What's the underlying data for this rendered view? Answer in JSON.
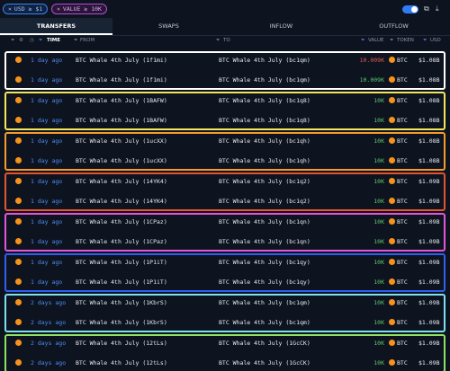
{
  "filters": {
    "chip1": "USD ≥ $1",
    "chip2": "VALUE ≥ 10K"
  },
  "tabs": [
    "TRANSFERS",
    "SWAPS",
    "INFLOW",
    "OUTFLOW"
  ],
  "columns": {
    "time": "TIME",
    "from": "FROM",
    "to": "TO",
    "value": "VALUE",
    "token": "TOKEN",
    "usd": "USD"
  },
  "group_colors": [
    "#ffffff",
    "#f3e65a",
    "#f59a2c",
    "#e4542f",
    "#e455d9",
    "#2f5ff0",
    "#7fe0f0",
    "#8fe060"
  ],
  "rows": [
    {
      "time": "1 day ago",
      "from": "BTC Whale 4th July  (1f1mi)",
      "to": "BTC Whale 4th July  (bc1qm)",
      "value": "10.009K",
      "red": true,
      "token": "BTC",
      "usd": "$1.08B"
    },
    {
      "time": "1 day ago",
      "from": "BTC Whale 4th July  (1f1mi)",
      "to": "BTC Whale 4th July  (bc1qm)",
      "value": "10.009K",
      "red": false,
      "token": "BTC",
      "usd": "$1.08B"
    },
    {
      "time": "1 day ago",
      "from": "BTC Whale 4th July  (1BAFW)",
      "to": "BTC Whale 4th July  (bc1q8)",
      "value": "10K",
      "red": false,
      "token": "BTC",
      "usd": "$1.08B"
    },
    {
      "time": "1 day ago",
      "from": "BTC Whale 4th July  (1BAFW)",
      "to": "BTC Whale 4th July  (bc1q8)",
      "value": "10K",
      "red": false,
      "token": "BTC",
      "usd": "$1.08B"
    },
    {
      "time": "1 day ago",
      "from": "BTC Whale 4th July  (1ucXX)",
      "to": "BTC Whale 4th July  (bc1qh)",
      "value": "10K",
      "red": false,
      "token": "BTC",
      "usd": "$1.08B"
    },
    {
      "time": "1 day ago",
      "from": "BTC Whale 4th July  (1ucXX)",
      "to": "BTC Whale 4th July  (bc1qh)",
      "value": "10K",
      "red": false,
      "token": "BTC",
      "usd": "$1.08B"
    },
    {
      "time": "1 day ago",
      "from": "BTC Whale 4th July  (14YK4)",
      "to": "BTC Whale 4th July  (bc1q2)",
      "value": "10K",
      "red": false,
      "token": "BTC",
      "usd": "$1.09B"
    },
    {
      "time": "1 day ago",
      "from": "BTC Whale 4th July  (14YK4)",
      "to": "BTC Whale 4th July  (bc1q2)",
      "value": "10K",
      "red": false,
      "token": "BTC",
      "usd": "$1.09B"
    },
    {
      "time": "1 day ago",
      "from": "BTC Whale 4th July  (1CPaz)",
      "to": "BTC Whale 4th July  (bc1qn)",
      "value": "10K",
      "red": false,
      "token": "BTC",
      "usd": "$1.09B"
    },
    {
      "time": "1 day ago",
      "from": "BTC Whale 4th July  (1CPaz)",
      "to": "BTC Whale 4th July  (bc1qn)",
      "value": "10K",
      "red": false,
      "token": "BTC",
      "usd": "$1.09B"
    },
    {
      "time": "1 day ago",
      "from": "BTC Whale 4th July  (1P1iT)",
      "to": "BTC Whale 4th July  (bc1qy)",
      "value": "10K",
      "red": false,
      "token": "BTC",
      "usd": "$1.09B"
    },
    {
      "time": "1 day ago",
      "from": "BTC Whale 4th July  (1P1iT)",
      "to": "BTC Whale 4th July  (bc1qy)",
      "value": "10K",
      "red": false,
      "token": "BTC",
      "usd": "$1.09B"
    },
    {
      "time": "2 days ago",
      "from": "BTC Whale 4th July  (1KbrS)",
      "to": "BTC Whale 4th July  (bc1qm)",
      "value": "10K",
      "red": false,
      "token": "BTC",
      "usd": "$1.09B"
    },
    {
      "time": "2 days ago",
      "from": "BTC Whale 4th July  (1KbrS)",
      "to": "BTC Whale 4th July  (bc1qm)",
      "value": "10K",
      "red": false,
      "token": "BTC",
      "usd": "$1.09B"
    },
    {
      "time": "2 days ago",
      "from": "BTC Whale 4th July  (12tLs)",
      "to": "BTC Whale 4th July  (1GcCK)",
      "value": "10K",
      "red": false,
      "token": "BTC",
      "usd": "$1.09B"
    },
    {
      "time": "2 days ago",
      "from": "BTC Whale 4th July  (12tLs)",
      "to": "BTC Whale 4th July  (1GcCK)",
      "value": "10K",
      "red": false,
      "token": "BTC",
      "usd": "$1.09B"
    }
  ]
}
